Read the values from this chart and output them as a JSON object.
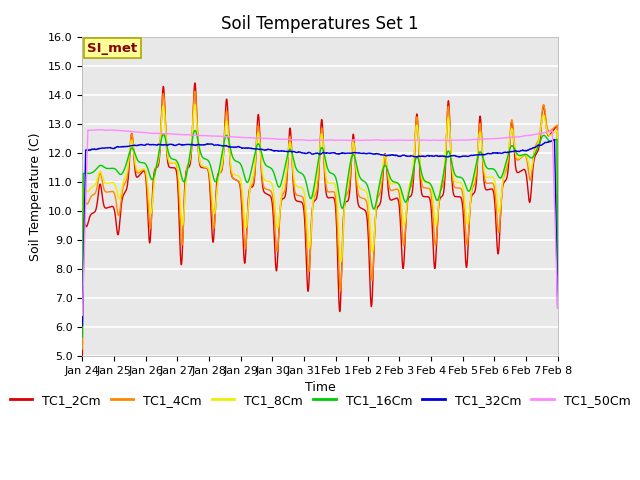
{
  "title": "Soil Temperatures Set 1",
  "xlabel": "Time",
  "ylabel": "Soil Temperature (C)",
  "ylim": [
    5.0,
    16.0
  ],
  "yticks": [
    5.0,
    6.0,
    7.0,
    8.0,
    9.0,
    10.0,
    11.0,
    12.0,
    13.0,
    14.0,
    15.0,
    16.0
  ],
  "fig_bg_color": "#ffffff",
  "plot_bg_color": "#e8e8e8",
  "grid_color": "#ffffff",
  "annotation_text": "SI_met",
  "annotation_bg": "#ffff99",
  "annotation_border": "#aaaa00",
  "annotation_text_color": "#880000",
  "series_colors": {
    "TC1_2Cm": "#dd0000",
    "TC1_4Cm": "#ff8800",
    "TC1_8Cm": "#eeee00",
    "TC1_16Cm": "#00cc00",
    "TC1_32Cm": "#0000dd",
    "TC1_50Cm": "#ff88ff"
  },
  "legend_labels": [
    "TC1_2Cm",
    "TC1_4Cm",
    "TC1_8Cm",
    "TC1_16Cm",
    "TC1_32Cm",
    "TC1_50Cm"
  ],
  "xtick_labels": [
    "Jan 24",
    "Jan 25",
    "Jan 26",
    "Jan 27",
    "Jan 28",
    "Jan 29",
    "Jan 30",
    "Jan 31",
    "Feb 1",
    "Feb 2",
    "Feb 3",
    "Feb 4",
    "Feb 5",
    "Feb 6",
    "Feb 7",
    "Feb 8"
  ],
  "title_fontsize": 12,
  "axis_label_fontsize": 9,
  "tick_fontsize": 8,
  "legend_fontsize": 9,
  "linewidth": 1.0
}
